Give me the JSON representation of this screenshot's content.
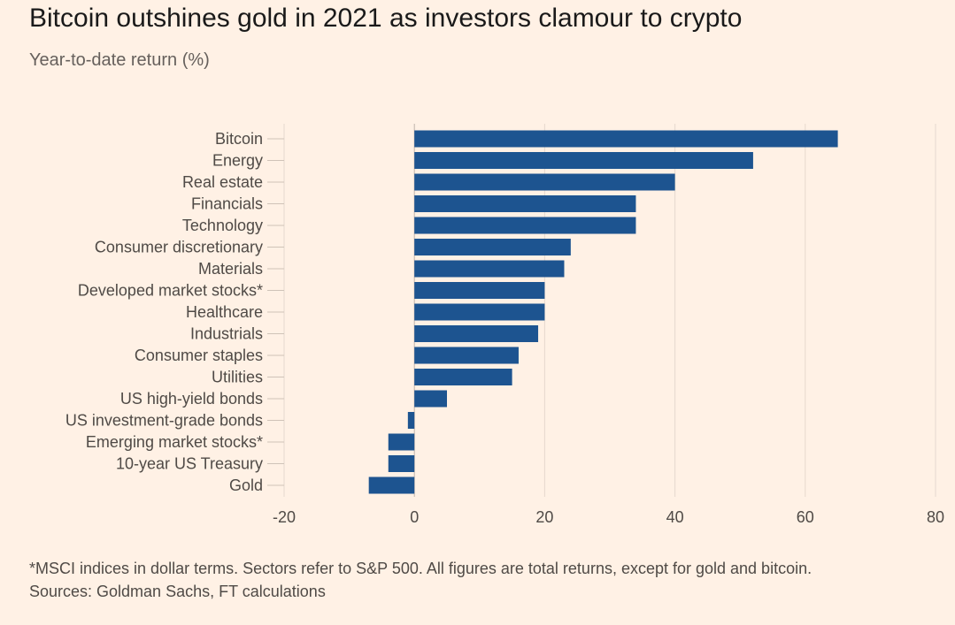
{
  "header": {
    "title": "Bitcoin outshines gold in 2021 as investors clamour to crypto",
    "subtitle": "Year-to-date return (%)"
  },
  "footer": {
    "note": "*MSCI indices in dollar terms. Sectors refer to S&P 500. All figures are total returns, except for gold and bitcoin.",
    "sources": "Sources: Goldman Sachs, FT calculations"
  },
  "colors": {
    "bar": "#1d5490",
    "background": "#fff1e5",
    "grid": "#e6d9ce"
  },
  "chart_data": {
    "type": "bar",
    "orientation": "horizontal",
    "title": "Bitcoin outshines gold in 2021 as investors clamour to crypto",
    "subtitle": "Year-to-date return (%)",
    "categories": [
      "Bitcoin",
      "Energy",
      "Real estate",
      "Financials",
      "Technology",
      "Consumer discretionary",
      "Materials",
      "Developed market stocks*",
      "Healthcare",
      "Industrials",
      "Consumer staples",
      "Utilities",
      "US high-yield bonds",
      "US investment-grade bonds",
      "Emerging market stocks*",
      "10-year US Treasury",
      "Gold"
    ],
    "values": [
      65,
      52,
      40,
      34,
      34,
      24,
      23,
      20,
      20,
      19,
      16,
      15,
      5,
      -1,
      -4,
      -4,
      -7
    ],
    "xlim": [
      -20,
      80
    ],
    "xticks": [
      "-20",
      "0",
      "20",
      "40",
      "60",
      "80"
    ],
    "xtick_values": [
      -20,
      0,
      20,
      40,
      60,
      80
    ],
    "grid": true
  }
}
